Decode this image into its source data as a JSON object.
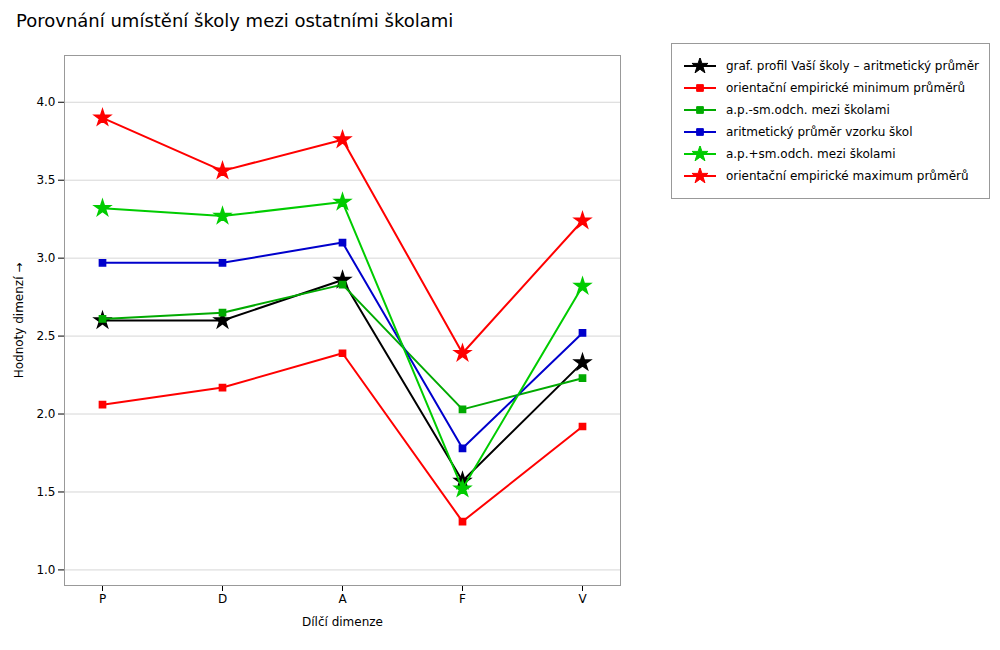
{
  "chart_data": {
    "type": "line",
    "title": "Porovnání umístění školy mezi ostatními školami",
    "xlabel": "Dílčí dimenze",
    "ylabel": "Hodnoty dimenzí",
    "categories": [
      "P",
      "D",
      "A",
      "F",
      "V"
    ],
    "ylim": [
      0.9,
      4.3
    ],
    "yticks": [
      {
        "value": 1,
        "label": "1.0"
      },
      1.5,
      {
        "value": 2,
        "label": "2.0"
      },
      2.5,
      {
        "value": 3,
        "label": "3.0"
      },
      3.5,
      {
        "value": 4,
        "label": "4.0"
      }
    ],
    "grid": true,
    "legend": "upper right",
    "series": [
      {
        "name": "graf. profil Vaší školy – aritmetický průměr",
        "color": "#000000",
        "marker": "star",
        "values": [
          2.6,
          2.6,
          2.86,
          1.57,
          2.33
        ]
      },
      {
        "name": "orientační empirické minimum průměrů",
        "color": "#FF0000",
        "marker": "square",
        "values": [
          2.06,
          2.17,
          2.39,
          1.31,
          1.92
        ]
      },
      {
        "name": "a.p.-sm.odch. mezi školami",
        "color": "#00AA00",
        "marker": "square",
        "values": [
          2.61,
          2.65,
          2.83,
          2.03,
          2.23
        ]
      },
      {
        "name": "aritmetický průměr vzorku škol",
        "color": "#0000CC",
        "marker": "square",
        "values": [
          2.97,
          2.97,
          3.1,
          1.78,
          2.52
        ]
      },
      {
        "name": "a.p.+sm.odch. mezi školami",
        "color": "#00CC00",
        "marker": "star",
        "values": [
          3.32,
          3.27,
          3.36,
          1.52,
          2.82
        ]
      },
      {
        "name": "orientační empirické maximum průměrů",
        "color": "#FF0000",
        "marker": "star",
        "values": [
          3.9,
          3.56,
          3.76,
          2.39,
          3.24
        ]
      }
    ]
  }
}
